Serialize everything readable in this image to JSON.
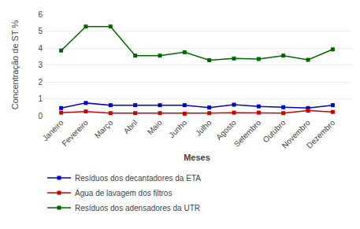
{
  "chart_data": {
    "type": "line",
    "xlabel": "Meses",
    "ylabel": "Concentração de ST %",
    "categories": [
      "Janeiro",
      "Fevereiro",
      "Março",
      "Abril",
      "Maio",
      "Junho",
      "Julho",
      "Agosto",
      "Setembro",
      "Outubro",
      "Novembro",
      "Dezembro"
    ],
    "series": [
      {
        "name": "Resíduos dos decantadores da ETA",
        "color": "#0000cc",
        "marker": "square",
        "line_style": "solid",
        "values": [
          0.45,
          0.75,
          0.62,
          0.62,
          0.62,
          0.62,
          0.48,
          0.65,
          0.55,
          0.5,
          0.45,
          0.62
        ]
      },
      {
        "name": "Água de lavagem dos filtros",
        "color": "#cc0000",
        "marker": "square",
        "line_style": "solid",
        "values": [
          0.18,
          0.25,
          0.15,
          0.15,
          0.15,
          0.12,
          0.15,
          0.18,
          0.18,
          0.15,
          0.3,
          0.22
        ]
      },
      {
        "name": "Resíduos dos adensadores da UTR",
        "color": "#006600",
        "marker": "square",
        "line_style": "solid",
        "values": [
          3.85,
          5.27,
          5.27,
          3.55,
          3.55,
          3.75,
          3.28,
          3.38,
          3.35,
          3.55,
          3.3,
          3.92
        ]
      }
    ],
    "ylim": [
      0,
      6
    ],
    "yticks": [
      0,
      1,
      2,
      3,
      4,
      5,
      6
    ],
    "grid": true,
    "legend": "bottom"
  }
}
